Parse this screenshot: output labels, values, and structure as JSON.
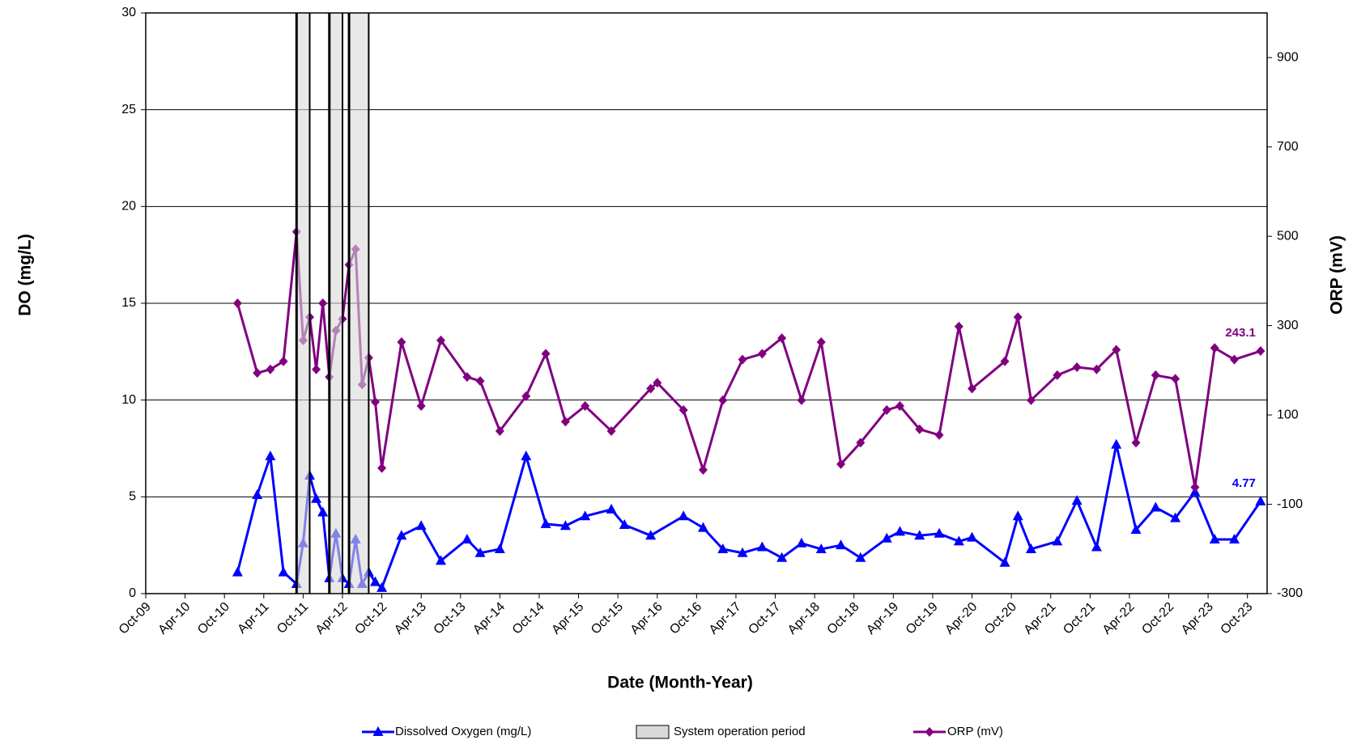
{
  "chart_data": {
    "type": "line",
    "xlabel": "Date (Month-Year)",
    "ylabel": "DO (mg/L)",
    "y2label": "ORP (mV)",
    "xlim": [
      "2009-10",
      "2024-01"
    ],
    "xticks": [
      {
        "value": "2009-10",
        "label": "Oct-09"
      },
      {
        "value": "2010-04",
        "label": "Apr-10"
      },
      {
        "value": "2010-10",
        "label": "Oct-10"
      },
      {
        "value": "2011-04",
        "label": "Apr-11"
      },
      {
        "value": "2011-10",
        "label": "Oct-11"
      },
      {
        "value": "2012-04",
        "label": "Apr-12"
      },
      {
        "value": "2012-10",
        "label": "Oct-12"
      },
      {
        "value": "2013-04",
        "label": "Apr-13"
      },
      {
        "value": "2013-10",
        "label": "Oct-13"
      },
      {
        "value": "2014-04",
        "label": "Apr-14"
      },
      {
        "value": "2014-10",
        "label": "Oct-14"
      },
      {
        "value": "2015-04",
        "label": "Apr-15"
      },
      {
        "value": "2015-10",
        "label": "Oct-15"
      },
      {
        "value": "2016-04",
        "label": "Apr-16"
      },
      {
        "value": "2016-10",
        "label": "Oct-16"
      },
      {
        "value": "2017-04",
        "label": "Apr-17"
      },
      {
        "value": "2017-10",
        "label": "Oct-17"
      },
      {
        "value": "2018-04",
        "label": "Apr-18"
      },
      {
        "value": "2018-10",
        "label": "Oct-18"
      },
      {
        "value": "2019-04",
        "label": "Apr-19"
      },
      {
        "value": "2019-10",
        "label": "Oct-19"
      },
      {
        "value": "2020-04",
        "label": "Apr-20"
      },
      {
        "value": "2020-10",
        "label": "Oct-20"
      },
      {
        "value": "2021-04",
        "label": "Apr-21"
      },
      {
        "value": "2021-10",
        "label": "Oct-21"
      },
      {
        "value": "2022-04",
        "label": "Apr-22"
      },
      {
        "value": "2022-10",
        "label": "Oct-22"
      },
      {
        "value": "2023-04",
        "label": "Apr-23"
      },
      {
        "value": "2023-10",
        "label": "Oct-23"
      }
    ],
    "ylim": [
      0,
      30
    ],
    "yticks": [
      0,
      5,
      10,
      15,
      20,
      25,
      30
    ],
    "y2lim": [
      -300,
      1000
    ],
    "y2ticks": [
      -300,
      -100,
      100,
      300,
      500,
      700,
      900
    ],
    "grid": true,
    "spans": {
      "name": "System operation period",
      "color": "#d9d9d9",
      "periods": [
        [
          "2011-09",
          "2011-11"
        ],
        [
          "2012-02",
          "2012-04"
        ],
        [
          "2012-05",
          "2012-08"
        ]
      ]
    },
    "series": [
      {
        "name": "Dissolved Oxygen (mg/L)",
        "color": "#0000ff",
        "marker": "triangle",
        "axis": "y",
        "x": [
          "2010-12",
          "2011-03",
          "2011-05",
          "2011-07",
          "2011-09",
          "2011-10",
          "2011-11",
          "2011-12",
          "2012-01",
          "2012-02",
          "2012-03",
          "2012-04",
          "2012-05",
          "2012-06",
          "2012-07",
          "2012-08",
          "2012-09",
          "2012-10",
          "2013-01",
          "2013-04",
          "2013-07",
          "2013-11",
          "2014-01",
          "2014-04",
          "2014-08",
          "2014-11",
          "2015-02",
          "2015-05",
          "2015-09",
          "2015-11",
          "2016-03",
          "2016-08",
          "2016-11",
          "2017-02",
          "2017-05",
          "2017-08",
          "2017-11",
          "2018-02",
          "2018-05",
          "2018-08",
          "2018-11",
          "2019-03",
          "2019-05",
          "2019-08",
          "2019-11",
          "2020-02",
          "2020-04",
          "2020-09",
          "2020-11",
          "2021-01",
          "2021-05",
          "2021-08",
          "2021-11",
          "2022-02",
          "2022-05",
          "2022-08",
          "2022-11",
          "2023-02",
          "2023-05",
          "2023-08",
          "2023-12"
        ],
        "values": [
          1.1,
          5.1,
          7.1,
          1.1,
          0.5,
          2.6,
          6.1,
          4.9,
          4.2,
          0.8,
          3.1,
          0.8,
          0.5,
          2.8,
          0.5,
          1.1,
          0.6,
          0.3,
          3.0,
          3.5,
          1.7,
          2.8,
          2.1,
          2.3,
          7.1,
          3.6,
          3.5,
          4.0,
          4.35,
          3.55,
          3.0,
          4.0,
          3.4,
          2.3,
          2.1,
          2.4,
          1.85,
          2.6,
          2.3,
          2.5,
          1.85,
          2.85,
          3.2,
          3.0,
          3.1,
          2.7,
          2.9,
          1.6,
          4.0,
          2.3,
          2.7,
          4.8,
          2.4,
          7.7,
          3.3,
          4.45,
          3.9,
          5.25,
          2.8,
          2.8,
          4.77
        ]
      },
      {
        "name": "ORP (mV)",
        "color": "#800080",
        "marker": "diamond",
        "axis": "y2",
        "x": [
          "2010-12",
          "2011-03",
          "2011-05",
          "2011-07",
          "2011-09",
          "2011-10",
          "2011-11",
          "2011-12",
          "2012-01",
          "2012-02",
          "2012-03",
          "2012-04",
          "2012-05",
          "2012-06",
          "2012-07",
          "2012-08",
          "2012-09",
          "2012-10",
          "2013-01",
          "2013-04",
          "2013-07",
          "2013-11",
          "2014-01",
          "2014-04",
          "2014-08",
          "2014-11",
          "2015-02",
          "2015-05",
          "2015-09",
          "2016-03",
          "2016-04",
          "2016-08",
          "2016-11",
          "2017-02",
          "2017-05",
          "2017-08",
          "2017-11",
          "2018-02",
          "2018-05",
          "2018-08",
          "2018-11",
          "2019-03",
          "2019-05",
          "2019-08",
          "2019-11",
          "2020-02",
          "2020-04",
          "2020-09",
          "2020-11",
          "2021-01",
          "2021-05",
          "2021-08",
          "2021-11",
          "2022-02",
          "2022-05",
          "2022-08",
          "2022-11",
          "2023-02",
          "2023-05",
          "2023-08",
          "2023-12"
        ],
        "values": [
          350,
          194,
          202,
          220,
          510,
          267,
          319,
          202,
          350,
          185,
          289,
          315,
          436,
          471,
          168,
          228,
          129,
          -19,
          263,
          120,
          267,
          185,
          176,
          64,
          142,
          237,
          85,
          120,
          64,
          159,
          172,
          111,
          -23,
          133,
          224,
          237,
          272,
          133,
          263,
          -10,
          38,
          111,
          120,
          68,
          55,
          298,
          159,
          220,
          319,
          133,
          189,
          207,
          202,
          246,
          38,
          189,
          181,
          -62,
          250,
          224,
          243.1
        ]
      }
    ]
  }
}
